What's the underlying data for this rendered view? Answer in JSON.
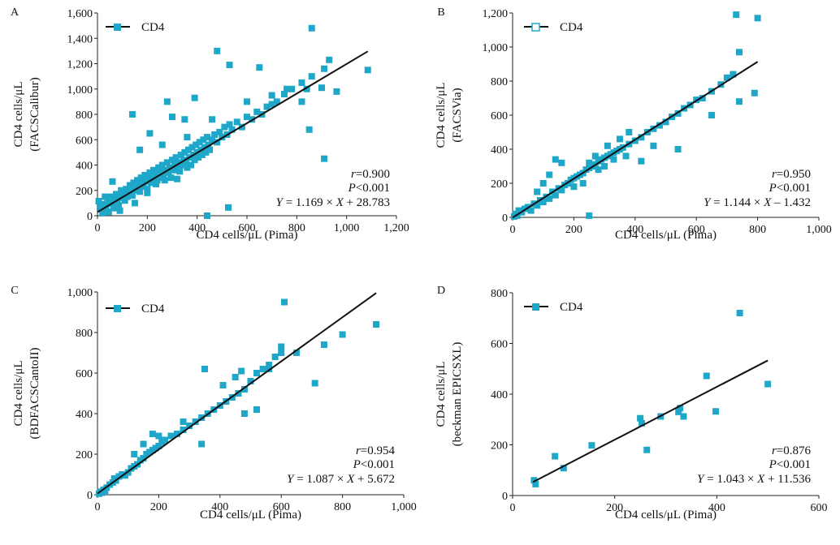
{
  "chart_data": [
    {
      "panel": "A",
      "type": "scatter",
      "xlabel": "CD4 cells/μL (Pima)",
      "ylabel_lines": [
        "CD4 cells/μL",
        "(FACSCalibur)"
      ],
      "xlim": [
        0,
        1200
      ],
      "ylim": [
        0,
        1600
      ],
      "xticks": [
        0,
        200,
        400,
        600,
        800,
        1000,
        1200
      ],
      "xtick_labels": [
        "0",
        "200",
        "400",
        "600",
        "800",
        "1,000",
        "1,200"
      ],
      "yticks": [
        0,
        200,
        400,
        600,
        800,
        1000,
        1200,
        1400,
        1600
      ],
      "ytick_labels": [
        "0",
        "200",
        "400",
        "600",
        "800",
        "1,000",
        "1,200",
        "1,400",
        "1,600"
      ],
      "legend": "CD4",
      "legend_marker": "filled-square",
      "color": "#1ea7c9",
      "stats": {
        "r": "=0.900",
        "p": "<0.001",
        "eq": " = 1.169 × ",
        "eq_tail": " + 28.783"
      },
      "fit": {
        "slope": 1.169,
        "intercept": 28.783,
        "x": [
          0,
          1085
        ]
      },
      "points": [
        [
          5,
          115
        ],
        [
          10,
          60
        ],
        [
          15,
          80
        ],
        [
          20,
          20
        ],
        [
          25,
          90
        ],
        [
          30,
          40
        ],
        [
          35,
          70
        ],
        [
          40,
          110
        ],
        [
          45,
          30
        ],
        [
          50,
          150
        ],
        [
          55,
          95
        ],
        [
          60,
          130
        ],
        [
          65,
          60
        ],
        [
          70,
          100
        ],
        [
          75,
          170
        ],
        [
          80,
          120
        ],
        [
          85,
          80
        ],
        [
          90,
          140
        ],
        [
          95,
          200
        ],
        [
          100,
          160
        ],
        [
          110,
          120
        ],
        [
          115,
          210
        ],
        [
          120,
          150
        ],
        [
          125,
          180
        ],
        [
          130,
          240
        ],
        [
          135,
          190
        ],
        [
          140,
          160
        ],
        [
          145,
          260
        ],
        [
          150,
          220
        ],
        [
          155,
          200
        ],
        [
          160,
          280
        ],
        [
          165,
          240
        ],
        [
          170,
          190
        ],
        [
          175,
          300
        ],
        [
          180,
          250
        ],
        [
          185,
          230
        ],
        [
          190,
          320
        ],
        [
          195,
          270
        ],
        [
          200,
          210
        ],
        [
          205,
          300
        ],
        [
          210,
          340
        ],
        [
          215,
          260
        ],
        [
          220,
          290
        ],
        [
          225,
          360
        ],
        [
          230,
          310
        ],
        [
          235,
          250
        ],
        [
          240,
          330
        ],
        [
          245,
          380
        ],
        [
          250,
          300
        ],
        [
          255,
          350
        ],
        [
          260,
          400
        ],
        [
          265,
          320
        ],
        [
          270,
          280
        ],
        [
          275,
          360
        ],
        [
          280,
          420
        ],
        [
          285,
          340
        ],
        [
          290,
          380
        ],
        [
          295,
          300
        ],
        [
          300,
          440
        ],
        [
          305,
          360
        ],
        [
          310,
          400
        ],
        [
          315,
          460
        ],
        [
          320,
          380
        ],
        [
          325,
          420
        ],
        [
          330,
          350
        ],
        [
          335,
          480
        ],
        [
          340,
          400
        ],
        [
          345,
          440
        ],
        [
          350,
          500
        ],
        [
          355,
          420
        ],
        [
          360,
          380
        ],
        [
          365,
          520
        ],
        [
          370,
          460
        ],
        [
          375,
          400
        ],
        [
          380,
          540
        ],
        [
          385,
          480
        ],
        [
          390,
          440
        ],
        [
          395,
          560
        ],
        [
          400,
          500
        ],
        [
          405,
          460
        ],
        [
          410,
          580
        ],
        [
          415,
          520
        ],
        [
          420,
          480
        ],
        [
          425,
          600
        ],
        [
          430,
          540
        ],
        [
          435,
          500
        ],
        [
          440,
          620
        ],
        [
          445,
          560
        ],
        [
          450,
          520
        ],
        [
          460,
          600
        ],
        [
          470,
          640
        ],
        [
          480,
          580
        ],
        [
          490,
          660
        ],
        [
          500,
          620
        ],
        [
          510,
          700
        ],
        [
          520,
          640
        ],
        [
          530,
          720
        ],
        [
          540,
          680
        ],
        [
          560,
          740
        ],
        [
          580,
          700
        ],
        [
          600,
          780
        ],
        [
          620,
          760
        ],
        [
          640,
          820
        ],
        [
          660,
          800
        ],
        [
          680,
          860
        ],
        [
          700,
          880
        ],
        [
          720,
          900
        ],
        [
          750,
          960
        ],
        [
          780,
          1000
        ],
        [
          820,
          1050
        ],
        [
          860,
          1100
        ],
        [
          930,
          1230
        ],
        [
          1085,
          1150
        ],
        [
          480,
          1300
        ],
        [
          530,
          1190
        ],
        [
          650,
          1170
        ],
        [
          860,
          1480
        ],
        [
          910,
          1160
        ],
        [
          900,
          1010
        ],
        [
          960,
          980
        ],
        [
          850,
          680
        ],
        [
          910,
          450
        ],
        [
          440,
          0
        ],
        [
          525,
          65
        ],
        [
          140,
          800
        ],
        [
          210,
          650
        ],
        [
          170,
          520
        ],
        [
          260,
          560
        ],
        [
          280,
          900
        ],
        [
          390,
          930
        ],
        [
          300,
          780
        ],
        [
          350,
          760
        ],
        [
          460,
          760
        ],
        [
          600,
          900
        ],
        [
          700,
          950
        ],
        [
          760,
          1000
        ],
        [
          820,
          900
        ],
        [
          840,
          1000
        ],
        [
          360,
          620
        ],
        [
          320,
          290
        ],
        [
          240,
          280
        ],
        [
          60,
          270
        ],
        [
          150,
          100
        ],
        [
          200,
          180
        ],
        [
          90,
          40
        ],
        [
          30,
          150
        ]
      ]
    },
    {
      "panel": "B",
      "type": "scatter",
      "xlabel": "CD4 cells/μL (Pima)",
      "ylabel_lines": [
        "CD4 cells/μL",
        "(FACSVia)"
      ],
      "xlim": [
        0,
        1000
      ],
      "ylim": [
        0,
        1200
      ],
      "xticks": [
        0,
        200,
        400,
        600,
        800,
        1000
      ],
      "xtick_labels": [
        "0",
        "200",
        "400",
        "600",
        "800",
        "1,000"
      ],
      "yticks": [
        0,
        200,
        400,
        600,
        800,
        1000,
        1200
      ],
      "ytick_labels": [
        "0",
        "200",
        "400",
        "600",
        "800",
        "1,000",
        "1,200"
      ],
      "legend": "CD4",
      "legend_marker": "open-square",
      "color": "#1ea7c9",
      "stats": {
        "r": "=0.950",
        "p": "<0.001",
        "eq": " = 1.144 × ",
        "eq_tail": " – 1.432"
      },
      "fit": {
        "slope": 1.144,
        "intercept": -1.432,
        "x": [
          0,
          800
        ]
      },
      "points": [
        [
          5,
          5
        ],
        [
          10,
          20
        ],
        [
          15,
          10
        ],
        [
          20,
          40
        ],
        [
          30,
          30
        ],
        [
          40,
          50
        ],
        [
          50,
          60
        ],
        [
          60,
          40
        ],
        [
          70,
          80
        ],
        [
          80,
          70
        ],
        [
          90,
          100
        ],
        [
          100,
          90
        ],
        [
          110,
          120
        ],
        [
          120,
          110
        ],
        [
          130,
          150
        ],
        [
          140,
          130
        ],
        [
          150,
          170
        ],
        [
          160,
          160
        ],
        [
          170,
          190
        ],
        [
          180,
          200
        ],
        [
          190,
          220
        ],
        [
          200,
          230
        ],
        [
          210,
          240
        ],
        [
          220,
          250
        ],
        [
          230,
          260
        ],
        [
          240,
          280
        ],
        [
          250,
          290
        ],
        [
          260,
          300
        ],
        [
          270,
          310
        ],
        [
          280,
          330
        ],
        [
          290,
          340
        ],
        [
          300,
          350
        ],
        [
          310,
          360
        ],
        [
          320,
          370
        ],
        [
          330,
          380
        ],
        [
          340,
          390
        ],
        [
          350,
          400
        ],
        [
          360,
          410
        ],
        [
          380,
          430
        ],
        [
          400,
          450
        ],
        [
          420,
          470
        ],
        [
          440,
          500
        ],
        [
          460,
          520
        ],
        [
          480,
          540
        ],
        [
          500,
          560
        ],
        [
          520,
          590
        ],
        [
          540,
          610
        ],
        [
          560,
          640
        ],
        [
          580,
          660
        ],
        [
          600,
          690
        ],
        [
          620,
          700
        ],
        [
          650,
          740
        ],
        [
          680,
          780
        ],
        [
          700,
          820
        ],
        [
          720,
          840
        ],
        [
          740,
          970
        ],
        [
          730,
          1190
        ],
        [
          800,
          1170
        ],
        [
          790,
          730
        ],
        [
          740,
          680
        ],
        [
          650,
          600
        ],
        [
          540,
          400
        ],
        [
          460,
          420
        ],
        [
          420,
          330
        ],
        [
          250,
          10
        ],
        [
          140,
          340
        ],
        [
          160,
          320
        ],
        [
          120,
          250
        ],
        [
          100,
          200
        ],
        [
          80,
          150
        ],
        [
          200,
          180
        ],
        [
          230,
          200
        ],
        [
          270,
          360
        ],
        [
          310,
          420
        ],
        [
          350,
          460
        ],
        [
          380,
          500
        ],
        [
          280,
          280
        ],
        [
          250,
          320
        ],
        [
          300,
          300
        ],
        [
          330,
          340
        ],
        [
          370,
          360
        ]
      ]
    },
    {
      "panel": "C",
      "type": "scatter",
      "xlabel": "CD4 cells/μL (Pima)",
      "ylabel_lines": [
        "CD4 cells/μL",
        "(BDFACSCantoII)"
      ],
      "xlim": [
        0,
        1000
      ],
      "ylim": [
        0,
        1000
      ],
      "xticks": [
        0,
        200,
        400,
        600,
        800,
        1000
      ],
      "xtick_labels": [
        "0",
        "200",
        "400",
        "600",
        "800",
        "1,000"
      ],
      "yticks": [
        0,
        200,
        400,
        600,
        800,
        1000
      ],
      "ytick_labels": [
        "0",
        "200",
        "400",
        "600",
        "800",
        "1,000"
      ],
      "legend": "CD4",
      "legend_marker": "filled-square",
      "color": "#1ea7c9",
      "stats": {
        "r": "=0.954",
        "p": "<0.001",
        "eq": " = 1.087 × ",
        "eq_tail": " + 5.672"
      },
      "fit": {
        "slope": 1.087,
        "intercept": 5.672,
        "x": [
          0,
          910
        ]
      },
      "points": [
        [
          5,
          5
        ],
        [
          10,
          15
        ],
        [
          15,
          10
        ],
        [
          20,
          25
        ],
        [
          25,
          20
        ],
        [
          30,
          35
        ],
        [
          40,
          50
        ],
        [
          50,
          60
        ],
        [
          55,
          80
        ],
        [
          60,
          70
        ],
        [
          70,
          90
        ],
        [
          80,
          100
        ],
        [
          90,
          95
        ],
        [
          100,
          110
        ],
        [
          110,
          130
        ],
        [
          120,
          140
        ],
        [
          130,
          150
        ],
        [
          140,
          170
        ],
        [
          150,
          180
        ],
        [
          160,
          200
        ],
        [
          170,
          210
        ],
        [
          180,
          220
        ],
        [
          190,
          230
        ],
        [
          200,
          240
        ],
        [
          210,
          260
        ],
        [
          220,
          270
        ],
        [
          240,
          290
        ],
        [
          260,
          300
        ],
        [
          280,
          320
        ],
        [
          300,
          340
        ],
        [
          320,
          360
        ],
        [
          340,
          380
        ],
        [
          360,
          400
        ],
        [
          380,
          420
        ],
        [
          400,
          440
        ],
        [
          420,
          460
        ],
        [
          440,
          480
        ],
        [
          460,
          500
        ],
        [
          480,
          520
        ],
        [
          500,
          560
        ],
        [
          520,
          600
        ],
        [
          540,
          620
        ],
        [
          560,
          640
        ],
        [
          580,
          680
        ],
        [
          600,
          700
        ],
        [
          610,
          950
        ],
        [
          650,
          700
        ],
        [
          710,
          550
        ],
        [
          740,
          740
        ],
        [
          800,
          790
        ],
        [
          910,
          840
        ],
        [
          350,
          620
        ],
        [
          280,
          360
        ],
        [
          200,
          290
        ],
        [
          120,
          200
        ],
        [
          340,
          250
        ],
        [
          480,
          400
        ],
        [
          520,
          420
        ],
        [
          470,
          610
        ],
        [
          410,
          540
        ],
        [
          450,
          580
        ],
        [
          560,
          620
        ],
        [
          600,
          730
        ],
        [
          180,
          300
        ],
        [
          150,
          250
        ]
      ]
    },
    {
      "panel": "D",
      "type": "scatter",
      "xlabel": "CD4 cells/μL (Pima)",
      "ylabel_lines": [
        "CD4 cells/μL",
        "(beckman EPICSXL)"
      ],
      "xlim": [
        0,
        600
      ],
      "ylim": [
        0,
        800
      ],
      "xticks": [
        0,
        200,
        400,
        600
      ],
      "xtick_labels": [
        "0",
        "200",
        "400",
        "600"
      ],
      "yticks": [
        0,
        200,
        400,
        600,
        800
      ],
      "ytick_labels": [
        "0",
        "200",
        "400",
        "600",
        "800"
      ],
      "legend": "CD4",
      "legend_marker": "filled-square",
      "color": "#1ea7c9",
      "stats": {
        "r": "=0.876",
        "p": "<0.001",
        "eq": " = 1.043 × ",
        "eq_tail": " + 11.536"
      },
      "fit": {
        "slope": 1.043,
        "intercept": 11.536,
        "x": [
          40,
          500
        ]
      },
      "points": [
        [
          42,
          60
        ],
        [
          45,
          45
        ],
        [
          83,
          155
        ],
        [
          100,
          108
        ],
        [
          155,
          198
        ],
        [
          250,
          305
        ],
        [
          253,
          285
        ],
        [
          263,
          180
        ],
        [
          290,
          312
        ],
        [
          325,
          330
        ],
        [
          328,
          345
        ],
        [
          335,
          312
        ],
        [
          380,
          472
        ],
        [
          398,
          332
        ],
        [
          445,
          720
        ],
        [
          500,
          440
        ]
      ]
    }
  ]
}
